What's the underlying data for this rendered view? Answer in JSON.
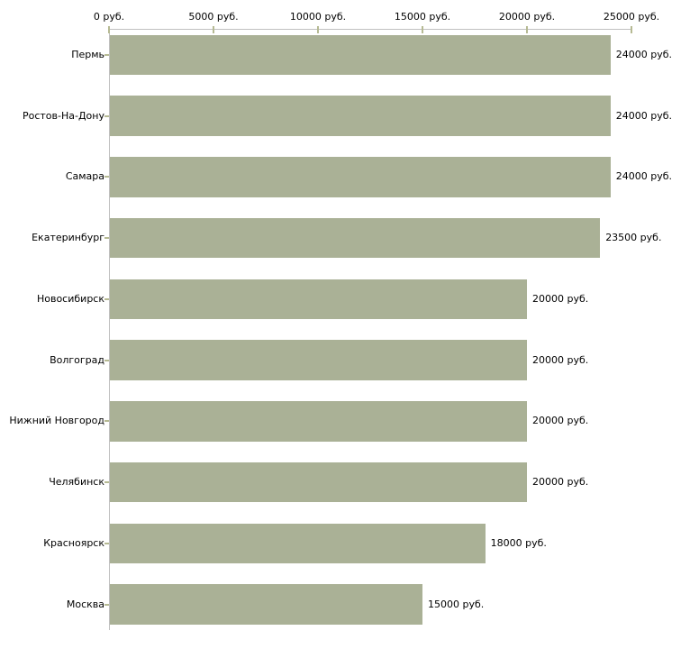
{
  "chart_data": {
    "type": "bar",
    "orientation": "horizontal",
    "title": "",
    "xlabel": "",
    "ylabel": "",
    "unit": "руб.",
    "xlim": [
      0,
      25000
    ],
    "grid": false,
    "legend": false,
    "x_ticks": [
      {
        "value": 0,
        "label": "0 руб."
      },
      {
        "value": 5000,
        "label": "5000 руб."
      },
      {
        "value": 10000,
        "label": "10000 руб."
      },
      {
        "value": 15000,
        "label": "15000 руб."
      },
      {
        "value": 20000,
        "label": "20000 руб."
      },
      {
        "value": 25000,
        "label": "25000 руб."
      }
    ],
    "categories": [
      "Пермь",
      "Ростов-На-Дону",
      "Самара",
      "Екатеринбург",
      "Новосибирск",
      "Волгоград",
      "Нижний Новгород",
      "Челябинск",
      "Красноярск",
      "Москва"
    ],
    "values": [
      24000,
      24000,
      24000,
      23500,
      20000,
      20000,
      20000,
      20000,
      18000,
      15000
    ],
    "value_labels": [
      "24000 руб.",
      "24000 руб.",
      "24000 руб.",
      "23500 руб.",
      "20000 руб.",
      "20000 руб.",
      "20000 руб.",
      "20000 руб.",
      "18000 руб.",
      "15000 руб."
    ],
    "colors": {
      "bar": "#aab196",
      "axis": "#c0c0c0",
      "tick": "#b6ba93",
      "text": "#000000",
      "background": "#ffffff"
    }
  }
}
